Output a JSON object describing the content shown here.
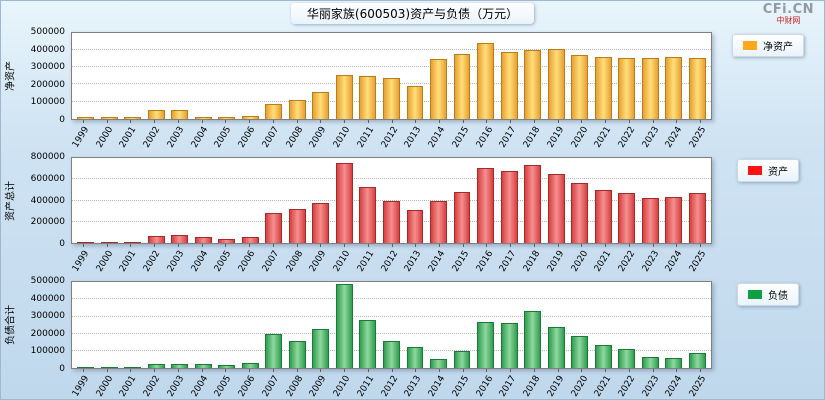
{
  "header": {
    "title": "华丽家族(600503)资产与负债（万元）",
    "logo_text": "CFi.CN",
    "logo_sub": "中财网"
  },
  "chart_data": [
    {
      "type": "bar",
      "y_axis_title": "净资产",
      "legend": "净资产",
      "legend_position": "right",
      "grid": true,
      "bar_color": "#E8A033",
      "bar_highlight": "#FFDE7A",
      "bar_border": "#B97E17",
      "legend_color": "#FFA81C",
      "ylim": [
        0,
        500000
      ],
      "yticks": [
        0,
        100000,
        200000,
        300000,
        400000,
        500000
      ],
      "categories": [
        "1999",
        "2000",
        "2001",
        "2002",
        "2003",
        "2004",
        "2005",
        "2006",
        "2007",
        "2008",
        "2009",
        "2010",
        "2011",
        "2012",
        "2013",
        "2014",
        "2015",
        "2016",
        "2017",
        "2018",
        "2019",
        "2020",
        "2021",
        "2022",
        "2023",
        "2024",
        "2025"
      ],
      "values": [
        8000,
        9000,
        10000,
        48000,
        50000,
        12000,
        10000,
        15000,
        85000,
        110000,
        155000,
        255000,
        250000,
        240000,
        190000,
        350000,
        380000,
        440000,
        390000,
        400000,
        405000,
        370000,
        360000,
        355000,
        355000,
        360000,
        355000
      ]
    },
    {
      "type": "bar",
      "y_axis_title": "资产总计",
      "legend": "资产",
      "legend_position": "right",
      "grid": true,
      "bar_color": "#D84040",
      "bar_highlight": "#F59090",
      "bar_border": "#A52A2A",
      "legend_color": "#FF1111",
      "ylim": [
        0,
        800000
      ],
      "yticks": [
        0,
        200000,
        400000,
        600000,
        800000
      ],
      "categories": [
        "1999",
        "2000",
        "2001",
        "2002",
        "2003",
        "2004",
        "2005",
        "2006",
        "2007",
        "2008",
        "2009",
        "2010",
        "2011",
        "2012",
        "2013",
        "2014",
        "2015",
        "2016",
        "2017",
        "2018",
        "2019",
        "2020",
        "2021",
        "2022",
        "2023",
        "2024",
        "2025"
      ],
      "values": [
        10000,
        12000,
        15000,
        70000,
        75000,
        60000,
        45000,
        55000,
        280000,
        320000,
        380000,
        750000,
        530000,
        400000,
        310000,
        400000,
        480000,
        700000,
        680000,
        730000,
        650000,
        560000,
        500000,
        470000,
        420000,
        430000,
        470000
      ]
    },
    {
      "type": "bar",
      "y_axis_title": "负债合计",
      "legend": "负债",
      "legend_position": "right",
      "grid": true,
      "bar_color": "#2F9E4F",
      "bar_highlight": "#8FD79F",
      "bar_border": "#1C7A38",
      "legend_color": "#0EA043",
      "ylim": [
        0,
        500000
      ],
      "yticks": [
        0,
        100000,
        200000,
        300000,
        400000,
        500000
      ],
      "categories": [
        "1999",
        "2000",
        "2001",
        "2002",
        "2003",
        "2004",
        "2005",
        "2006",
        "2007",
        "2008",
        "2009",
        "2010",
        "2011",
        "2012",
        "2013",
        "2014",
        "2015",
        "2016",
        "2017",
        "2018",
        "2019",
        "2020",
        "2021",
        "2022",
        "2023",
        "2024",
        "2025"
      ],
      "values": [
        4000,
        4000,
        6000,
        22000,
        26000,
        22000,
        20000,
        28000,
        200000,
        160000,
        230000,
        490000,
        280000,
        160000,
        120000,
        55000,
        100000,
        270000,
        265000,
        335000,
        240000,
        185000,
        135000,
        110000,
        65000,
        60000,
        90000
      ]
    }
  ]
}
